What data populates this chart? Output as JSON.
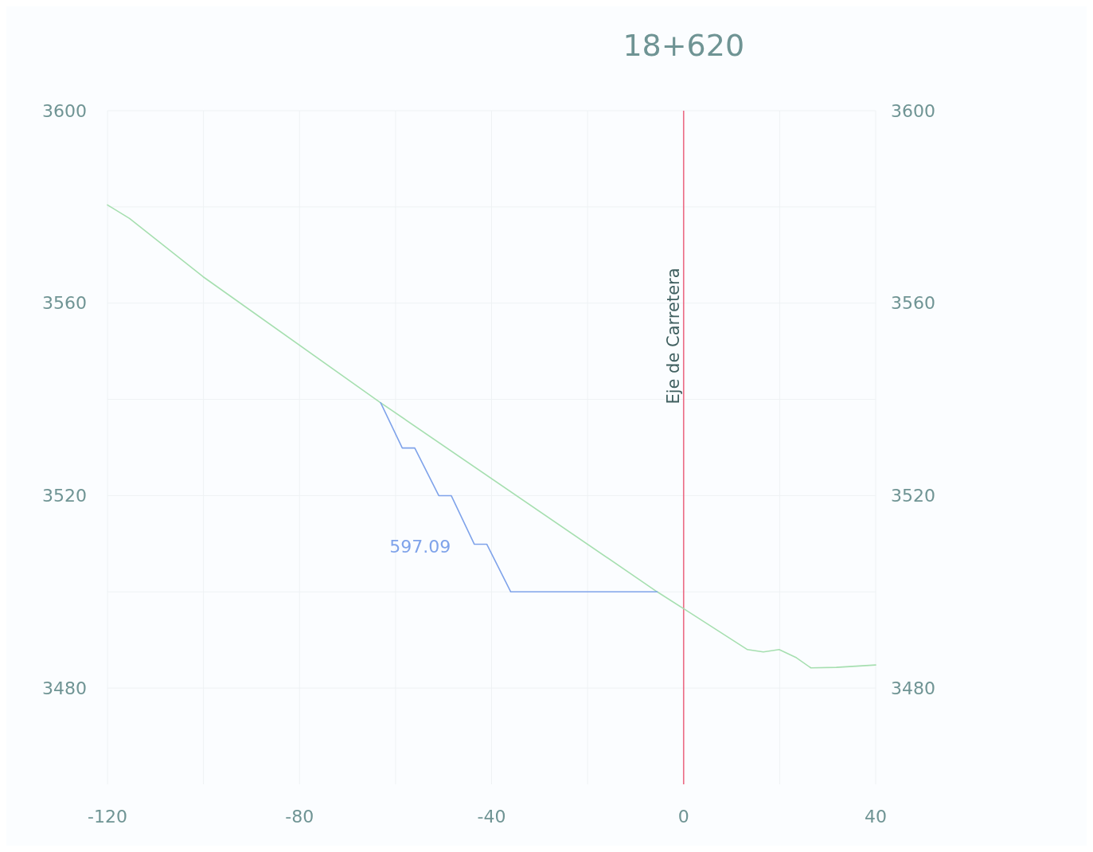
{
  "chart_data": {
    "type": "line",
    "title": "18+620",
    "xlim": [
      -120,
      40
    ],
    "xticks": [
      -120,
      {
        "value": -100,
        "label": null
      },
      -80,
      {
        "value": -60,
        "label": null
      },
      -40,
      {
        "value": -20,
        "label": null
      },
      0,
      {
        "value": 20,
        "label": null
      },
      40
    ],
    "ylim": [
      3460,
      3600
    ],
    "yticks": [
      {
        "value": 3500,
        "label": null
      },
      3480,
      3520,
      {
        "value": 3540,
        "label": null
      },
      3560,
      {
        "value": 3580,
        "label": null
      },
      3600
    ],
    "y2lim": [
      3460,
      3600
    ],
    "y2ticks": [
      3480,
      3520,
      3560,
      3600
    ],
    "grid": true,
    "marker": "none",
    "line_style": "solid",
    "series": [
      {
        "color": "#a6dfb0",
        "x": [
          -120,
          -115.4,
          -100.1,
          -63.1,
          -5.5,
          0,
          13.3,
          16.6,
          19.9,
          23.5,
          26.5,
          31.8,
          40
        ],
        "values": [
          3580.4,
          3577.6,
          3565.5,
          3539.3,
          3500,
          3496.5,
          3488,
          3487.5,
          3488,
          3486.3,
          3484.2,
          3484.3,
          3484.8
        ]
      },
      {
        "color": "#7fa3ea",
        "x": [
          -63.1,
          -58.6,
          -56,
          -51,
          -48.4,
          -43.6,
          -41,
          -36,
          -5.5
        ],
        "values": [
          3539.3,
          3529.9,
          3529.9,
          3520,
          3520,
          3509.9,
          3509.9,
          3500,
          3500
        ]
      }
    ],
    "ref_lines": [
      {
        "axis": "x",
        "value": 0,
        "label": "Eje de Carretera",
        "color": "#ec6a84"
      }
    ],
    "annotations": [
      "597.09"
    ]
  }
}
